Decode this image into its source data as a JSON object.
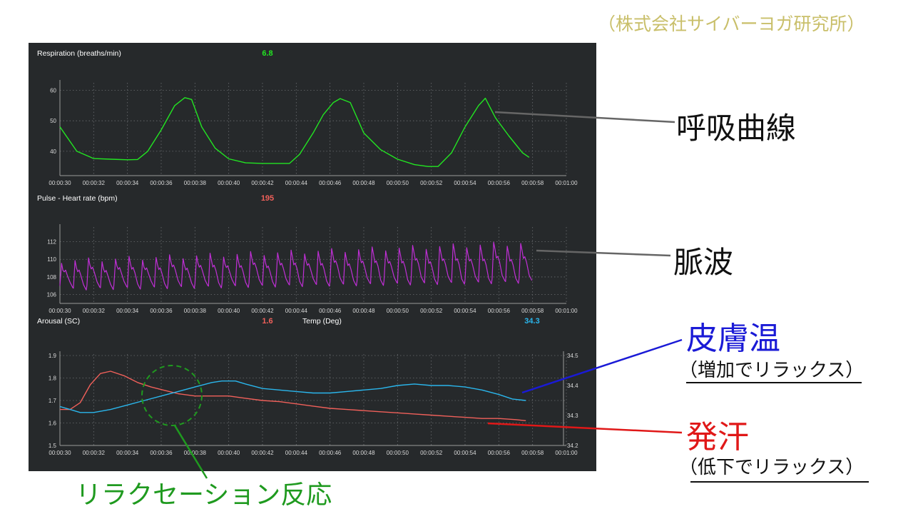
{
  "credit": "（株式会社サイバーヨガ研究所）",
  "annotations": {
    "respiration": "呼吸曲線",
    "pulse": "脈波",
    "skin_temp": "皮膚温",
    "skin_temp_note": "（増加でリラックス）",
    "sweat": "発汗",
    "sweat_note": "（低下でリラックス）",
    "relaxation": "リラクセーション反応"
  },
  "colors": {
    "panel_bg": "#26292b",
    "respiration": "#22e522",
    "pulse": "#c02fd6",
    "arousal": "#f0605a",
    "temp": "#2ab6ec",
    "circle": "#1f9a1f",
    "skin_line": "#1a1ad6",
    "sweat_line": "#e01818"
  },
  "chart_data": [
    {
      "type": "line",
      "title": "Respiration (breaths/min)",
      "current_value": "6.8",
      "x_ticks": [
        "00:00:30",
        "00:00:32",
        "00:00:34",
        "00:00:36",
        "00:00:38",
        "00:00:40",
        "00:00:42",
        "00:00:44",
        "00:00:46",
        "00:00:48",
        "00:00:50",
        "00:00:52",
        "00:00:54",
        "00:00:56",
        "00:00:58",
        "00:01:00"
      ],
      "y_ticks": [
        "40",
        "50",
        "60"
      ],
      "xlim": [
        30,
        60
      ],
      "ylim": [
        32,
        62
      ],
      "series": [
        {
          "color": "#22e522",
          "x": [
            30.0,
            31.0,
            32.0,
            33.0,
            34.0,
            34.6,
            35.2,
            36.0,
            36.8,
            37.4,
            37.8,
            38.4,
            39.2,
            40.0,
            41.0,
            42.0,
            43.0,
            43.6,
            44.2,
            45.0,
            45.6,
            46.2,
            46.6,
            47.2,
            48.0,
            49.0,
            50.0,
            51.0,
            51.8,
            52.4,
            53.2,
            54.0,
            54.8,
            55.2,
            55.8,
            56.6,
            57.4,
            57.8
          ],
          "y": [
            48,
            40,
            37.6,
            37.4,
            37.2,
            37.3,
            40,
            47,
            55,
            57.6,
            57,
            48,
            41,
            37.5,
            36.2,
            36,
            36,
            36,
            39,
            46,
            52,
            56,
            57.3,
            56,
            46,
            40.5,
            37.4,
            35.6,
            35,
            35,
            39.5,
            48,
            55,
            57.4,
            51,
            45,
            39.5,
            38
          ]
        }
      ]
    },
    {
      "type": "line",
      "title": "Pulse - Heart rate (bpm)",
      "current_value": "195",
      "x_ticks": [
        "00:00:30",
        "00:00:32",
        "00:00:34",
        "00:00:36",
        "00:00:38",
        "00:00:40",
        "00:00:42",
        "00:00:44",
        "00:00:46",
        "00:00:48",
        "00:00:50",
        "00:00:52",
        "00:00:54",
        "00:00:56",
        "00:00:58",
        "00:01:00"
      ],
      "y_ticks": [
        "106",
        "108",
        "110",
        "112"
      ],
      "xlim": [
        30,
        60
      ],
      "ylim": [
        105,
        113.5
      ],
      "pulse_wave": {
        "color": "#c02fd6",
        "start_s": 30.0,
        "end_s": 57.6,
        "beat_period_s": 0.8,
        "peak_start": 109.8,
        "peak_end": 111.8,
        "trough_start": 106.8,
        "trough_end": 107.6
      }
    },
    {
      "type": "line",
      "title": "Arousal (SC)",
      "current_value": "1.6",
      "secondary_title": "Temp (Deg)",
      "secondary_value": "34.3",
      "x_ticks": [
        "00:00:30",
        "00:00:32",
        "00:00:34",
        "00:00:36",
        "00:00:38",
        "00:00:40",
        "00:00:42",
        "00:00:44",
        "00:00:46",
        "00:00:48",
        "00:00:50",
        "00:00:52",
        "00:00:54",
        "00:00:56",
        "00:00:58",
        "00:01:00"
      ],
      "y_ticks": [
        "1.5",
        "1.6",
        "1.7",
        "1.8",
        "1.9"
      ],
      "ylim": [
        1.5,
        1.9
      ],
      "y2_ticks": [
        "34.2",
        "34.3",
        "34.4",
        "34.5"
      ],
      "y2lim": [
        34.2,
        34.5
      ],
      "xlim": [
        30,
        60
      ],
      "series": [
        {
          "name": "Arousal (SC)",
          "axis": "left",
          "color": "#f0605a",
          "x": [
            30.0,
            30.6,
            31.2,
            31.8,
            32.4,
            33.0,
            33.8,
            34.6,
            35.4,
            36.2,
            37.0,
            38.0,
            39.0,
            40.0,
            41.0,
            42.0,
            43.0,
            44.0,
            45.0,
            46.0,
            47.0,
            48.0,
            49.0,
            50.0,
            51.0,
            52.0,
            53.0,
            54.0,
            55.0,
            56.0,
            57.0,
            57.6
          ],
          "y": [
            1.66,
            1.66,
            1.69,
            1.77,
            1.82,
            1.83,
            1.81,
            1.78,
            1.76,
            1.745,
            1.73,
            1.72,
            1.72,
            1.72,
            1.71,
            1.7,
            1.695,
            1.685,
            1.675,
            1.665,
            1.66,
            1.655,
            1.65,
            1.645,
            1.64,
            1.635,
            1.63,
            1.625,
            1.62,
            1.62,
            1.615,
            1.61
          ]
        },
        {
          "name": "Temp (Deg)",
          "axis": "right",
          "color": "#2ab6ec",
          "x": [
            30.0,
            30.6,
            31.2,
            32.0,
            33.0,
            34.0,
            35.0,
            36.0,
            37.0,
            38.0,
            39.0,
            39.6,
            40.4,
            41.0,
            42.0,
            43.0,
            44.0,
            45.0,
            46.0,
            47.0,
            48.0,
            49.0,
            50.0,
            51.0,
            52.0,
            53.0,
            54.0,
            55.0,
            56.0,
            56.8,
            57.6
          ],
          "y": [
            34.33,
            34.32,
            34.31,
            34.31,
            34.32,
            34.335,
            34.35,
            34.365,
            34.38,
            34.395,
            34.41,
            34.415,
            34.415,
            34.405,
            34.39,
            34.385,
            34.38,
            34.375,
            34.375,
            34.38,
            34.385,
            34.39,
            34.4,
            34.405,
            34.4,
            34.4,
            34.395,
            34.385,
            34.37,
            34.355,
            34.35
          ]
        }
      ]
    }
  ]
}
